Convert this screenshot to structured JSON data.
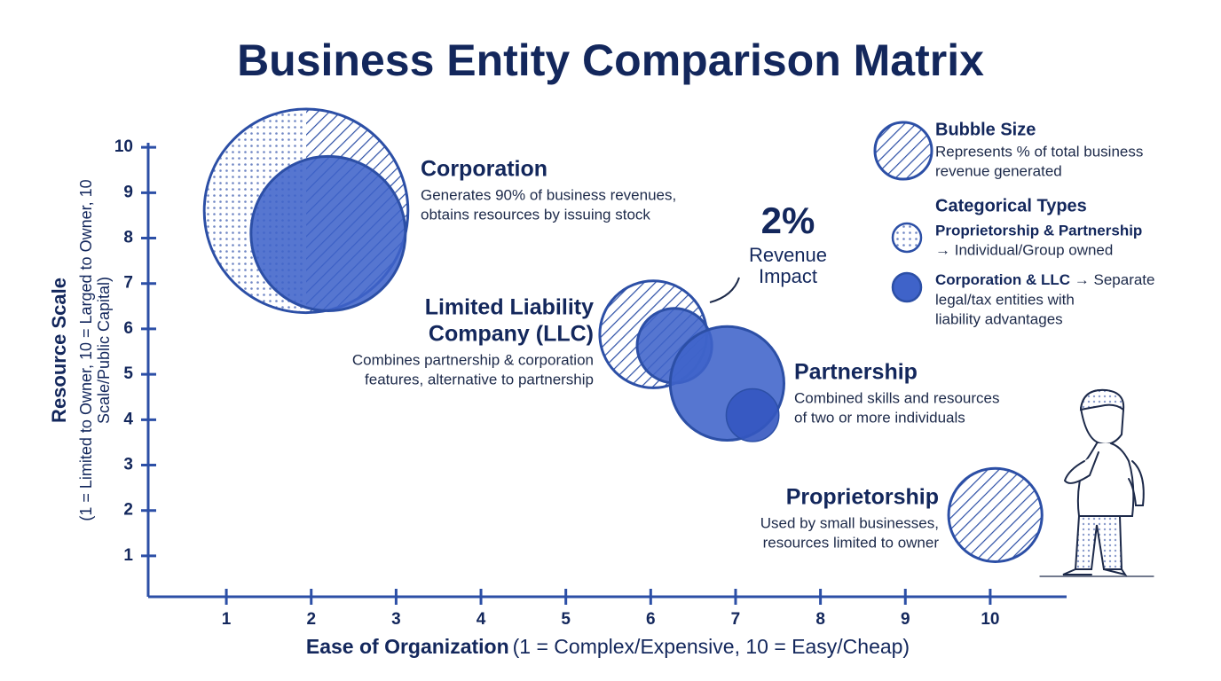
{
  "chart_data": {
    "type": "bubble",
    "title": "Business Entity Comparison Matrix",
    "x_label": "Ease of Organization",
    "x_label_note": "(1 = Complex/Expensive, 10 = Easy/Cheap)",
    "y_label": "Resource Scale",
    "y_label_note": [
      "(1 = Limited to Owner, 10 = Larged to Owner, 10",
      "Scale/Public Capital)"
    ],
    "xlim": [
      0.1,
      10.9
    ],
    "ylim": [
      0.1,
      10.1
    ],
    "xticks": [
      1,
      2,
      3,
      4,
      5,
      6,
      7,
      8,
      9,
      10
    ],
    "yticks": [
      1,
      2,
      3,
      4,
      5,
      6,
      7,
      8,
      9,
      10
    ],
    "color": "#2c4fa6",
    "bubbles": [
      {
        "x": 1.94,
        "y": 8.6,
        "size": 1.2,
        "style": "dotted-hatched"
      },
      {
        "x": 2.2,
        "y": 8.1,
        "size": 0.91,
        "style": "solid"
      },
      {
        "x": 6.03,
        "y": 5.88,
        "size": 0.63,
        "style": "hatched"
      },
      {
        "x": 6.28,
        "y": 5.63,
        "size": 0.44,
        "style": "solid"
      },
      {
        "x": 6.9,
        "y": 4.8,
        "size": 0.67,
        "style": "solid"
      },
      {
        "x": 7.2,
        "y": 4.1,
        "size": 0.31,
        "style": "solid-dark"
      },
      {
        "x": 10.06,
        "y": 1.9,
        "size": 0.55,
        "style": "hatched"
      }
    ],
    "annotations": [
      {
        "title": [
          "Corporation"
        ],
        "text": [
          "Generates 90% of business revenues,",
          "obtains resources by issuing stock"
        ]
      },
      {
        "title": [
          "Limited Liability",
          "Company (LLC)"
        ],
        "text": [
          "Combines partnership & corporation",
          "features, alternative to partnership"
        ]
      },
      {
        "title": [
          "Partnership"
        ],
        "text": [
          "Combined skills and resources",
          "of two or more individuals"
        ]
      },
      {
        "title": [
          "Proprietorship"
        ],
        "text": [
          "Used by small businesses,",
          "resources limited to owner"
        ]
      }
    ],
    "callout": {
      "value": "2%",
      "label": [
        "Revenue",
        "Impact"
      ]
    },
    "legend": {
      "size_title": "Bubble Size",
      "size_text": [
        "Represents % of total business",
        "revenue generated"
      ],
      "types_title": "Categorical Types",
      "types": [
        {
          "name": "Proprietorship & Partnership",
          "text": [
            "→ Individual/Group owned"
          ]
        },
        {
          "name": "Corporation & LLC",
          "text": [
            " → Separate",
            "legal/tax entities with",
            "liability advantages"
          ]
        }
      ]
    }
  }
}
